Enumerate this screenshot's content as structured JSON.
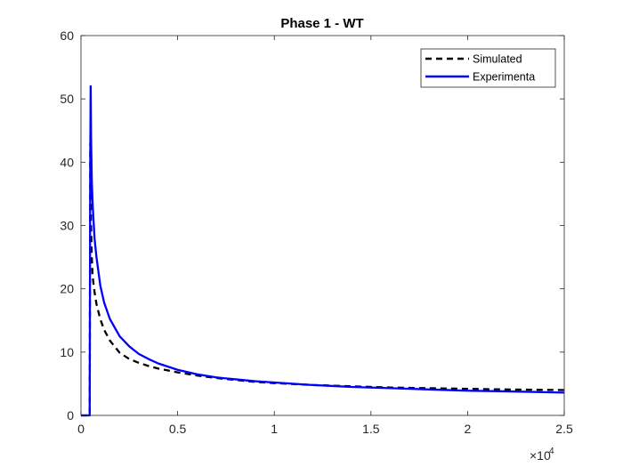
{
  "chart_data": {
    "type": "line",
    "title": "Phase 1 - WT",
    "xlabel": "",
    "ylabel": "",
    "xlim": [
      0,
      25000
    ],
    "ylim": [
      0,
      60
    ],
    "x_ticks": [
      0,
      5000,
      10000,
      15000,
      20000,
      25000
    ],
    "x_tick_labels": [
      "0",
      "0.5",
      "1",
      "1.5",
      "2",
      "2.5"
    ],
    "x_exponent_base": "×10",
    "x_exponent_power": "4",
    "y_ticks": [
      0,
      10,
      20,
      30,
      40,
      50,
      60
    ],
    "y_tick_labels": [
      "0",
      "10",
      "20",
      "30",
      "40",
      "50",
      "60"
    ],
    "grid": false,
    "legend_position": "top-right",
    "series": [
      {
        "name": "Simulated",
        "color": "#000000",
        "line_style": "dashed",
        "x": [
          0,
          450,
          480,
          520,
          560,
          600,
          700,
          800,
          1000,
          1200,
          1500,
          2000,
          2500,
          3000,
          3500,
          4000,
          5000,
          6000,
          7000,
          8000,
          9000,
          10000,
          12000,
          14000,
          16000,
          18000,
          20000,
          22000,
          25000
        ],
        "y": [
          0,
          0,
          43,
          30,
          25,
          22,
          19.5,
          17.6,
          15.2,
          13.5,
          11.8,
          9.9,
          8.9,
          8.3,
          7.8,
          7.4,
          6.8,
          6.3,
          5.9,
          5.6,
          5.3,
          5.1,
          4.8,
          4.6,
          4.4,
          4.3,
          4.2,
          4.1,
          4.0
        ]
      },
      {
        "name": "Experimenta",
        "color": "#0000ff",
        "line_style": "solid",
        "x": [
          0,
          450,
          480,
          500,
          520,
          560,
          600,
          700,
          800,
          1000,
          1200,
          1500,
          2000,
          2500,
          3000,
          3500,
          4000,
          5000,
          6000,
          7000,
          8000,
          9000,
          10000,
          12000,
          14000,
          16000,
          18000,
          20000,
          22000,
          25000
        ],
        "y": [
          0,
          0,
          40,
          52,
          44,
          37,
          33.5,
          28,
          25,
          20.5,
          17.8,
          15.2,
          12.5,
          10.9,
          9.7,
          8.9,
          8.2,
          7.2,
          6.5,
          6.0,
          5.7,
          5.4,
          5.2,
          4.8,
          4.5,
          4.3,
          4.1,
          3.9,
          3.8,
          3.6
        ]
      }
    ]
  }
}
